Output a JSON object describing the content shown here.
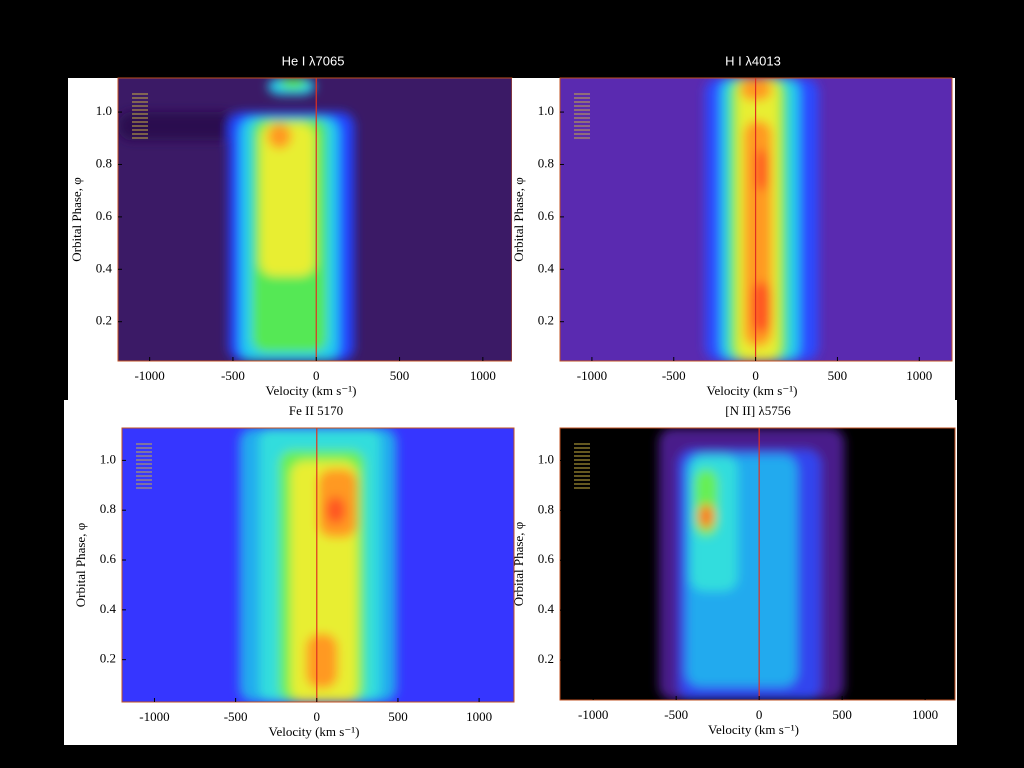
{
  "chart_data": [
    {
      "type": "contour",
      "title": "He I λ7065",
      "x_label": "Velocity (km s⁻¹)",
      "y_label": "Orbital Phase, φ",
      "xlim": [
        -1190,
        1175
      ],
      "xticks": [
        -1000,
        -500,
        0,
        500,
        1000
      ],
      "ylim": [
        0.05,
        1.13
      ],
      "yticks": [
        0.2,
        0.4,
        0.6,
        0.8,
        {
          "value": 1,
          "label": "1.0"
        }
      ]
    },
    {
      "type": "contour",
      "title": "H I λ4013",
      "x_label": "Velocity (km s⁻¹)",
      "y_label": "Orbital Phase, φ",
      "xlim": [
        -1195,
        1200
      ],
      "xticks": [
        -1000,
        -500,
        0,
        500,
        1000
      ],
      "ylim": [
        0.05,
        1.13
      ],
      "yticks": [
        0.2,
        0.4,
        0.6,
        0.8,
        {
          "value": 1,
          "label": "1.0"
        }
      ]
    },
    {
      "type": "contour",
      "title": "Fe II 5170",
      "x_label": "Velocity (km s⁻¹)",
      "y_label": "Orbital Phase, φ",
      "xlim": [
        -1200,
        1215
      ],
      "xticks": [
        -1000,
        -500,
        0,
        500,
        1000
      ],
      "ylim": [
        0.03,
        1.13
      ],
      "yticks": [
        0.2,
        0.4,
        0.6,
        0.8,
        {
          "value": 1,
          "label": "1.0"
        }
      ]
    },
    {
      "type": "contour",
      "title": "[N II] λ5756",
      "x_label": "Velocity (km s⁻¹)",
      "y_label": "Orbital Phase, φ",
      "xlim": [
        -1200,
        1180
      ],
      "xticks": [
        -1000,
        -500,
        0,
        500,
        1000
      ],
      "ylim": [
        0.04,
        1.13
      ],
      "yticks": [
        0.2,
        0.4,
        0.6,
        0.8,
        {
          "value": 1,
          "label": "1.0"
        }
      ]
    }
  ]
}
